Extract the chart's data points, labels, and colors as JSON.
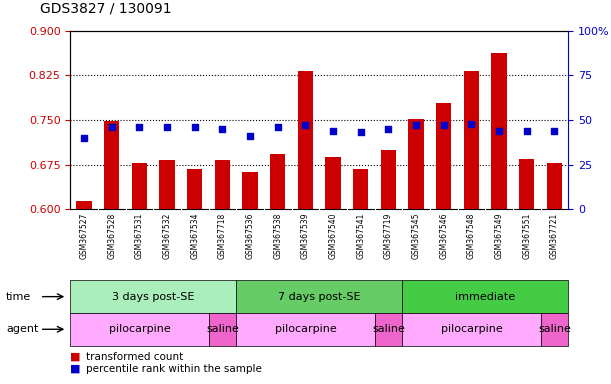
{
  "title": "GDS3827 / 130091",
  "samples": [
    "GSM367527",
    "GSM367528",
    "GSM367531",
    "GSM367532",
    "GSM367534",
    "GSM367718",
    "GSM367536",
    "GSM367538",
    "GSM367539",
    "GSM367540",
    "GSM367541",
    "GSM367719",
    "GSM367545",
    "GSM367546",
    "GSM367548",
    "GSM367549",
    "GSM367551",
    "GSM367721"
  ],
  "red_values": [
    0.614,
    0.748,
    0.678,
    0.682,
    0.668,
    0.683,
    0.663,
    0.693,
    0.832,
    0.688,
    0.668,
    0.7,
    0.752,
    0.779,
    0.832,
    0.862,
    0.685,
    0.678
  ],
  "blue_percentile": [
    40,
    46,
    46,
    46,
    46,
    45,
    41,
    46,
    47,
    44,
    43,
    45,
    47,
    47,
    48,
    44,
    44,
    44
  ],
  "ylim_left": [
    0.6,
    0.9
  ],
  "ylim_right": [
    0,
    100
  ],
  "yticks_left": [
    0.6,
    0.675,
    0.75,
    0.825,
    0.9
  ],
  "yticks_right": [
    0,
    25,
    50,
    75,
    100
  ],
  "ytick_labels_right": [
    "0",
    "25",
    "50",
    "75",
    "100%"
  ],
  "grid_lines": [
    0.675,
    0.75,
    0.825
  ],
  "time_groups": [
    {
      "label": "3 days post-SE",
      "start": 0,
      "end": 5,
      "color": "#aaeebb"
    },
    {
      "label": "7 days post-SE",
      "start": 6,
      "end": 11,
      "color": "#66cc66"
    },
    {
      "label": "immediate",
      "start": 12,
      "end": 17,
      "color": "#44cc44"
    }
  ],
  "agent_groups": [
    {
      "label": "pilocarpine",
      "start": 0,
      "end": 4,
      "color": "#ffaaff"
    },
    {
      "label": "saline",
      "start": 5,
      "end": 5,
      "color": "#ee66cc"
    },
    {
      "label": "pilocarpine",
      "start": 6,
      "end": 10,
      "color": "#ffaaff"
    },
    {
      "label": "saline",
      "start": 11,
      "end": 11,
      "color": "#ee66cc"
    },
    {
      "label": "pilocarpine",
      "start": 12,
      "end": 16,
      "color": "#ffaaff"
    },
    {
      "label": "saline",
      "start": 17,
      "end": 17,
      "color": "#ee66cc"
    }
  ],
  "bar_color": "#cc0000",
  "dot_color": "#0000cc",
  "bar_bottom": 0.6,
  "bar_width": 0.55,
  "dot_size": 25,
  "left_axis_color": "#cc0000",
  "right_axis_color": "#0000cc",
  "bg_sample_color": "#dddddd",
  "legend_items": [
    {
      "color": "#cc0000",
      "label": "transformed count"
    },
    {
      "color": "#0000cc",
      "label": "percentile rank within the sample"
    }
  ]
}
